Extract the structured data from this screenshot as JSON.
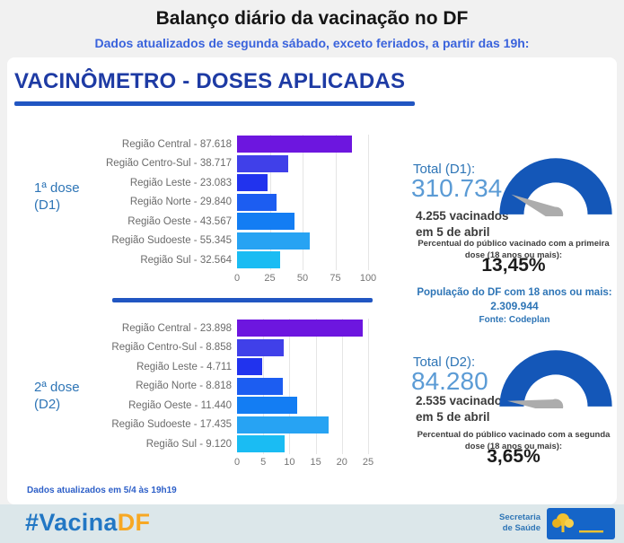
{
  "page": {
    "title": "Balanço diário da vacinação no DF",
    "subtitle": "Dados atualizados de segunda sábado, exceto feriados, a partir das 19h:"
  },
  "card": {
    "title": "VACINÔMETRO - DOSES APLICADAS",
    "updated_note": "Dados atualizados em 5/4 às 19h19"
  },
  "population": {
    "label": "População do DF com 18 anos ou mais:",
    "value": "2.309.944",
    "source": "Fonte: Codeplan"
  },
  "dose1": {
    "side_label_line1": "1ª dose",
    "side_label_line2": "(D1)",
    "total_label": "Total (D1):",
    "total_value": "310.734",
    "daily_line1": "4.255 vacinados",
    "daily_line2": "em 5 de abril",
    "gauge_caption": "Percentual do público vacinado com a primeira dose (18 anos ou mais):",
    "gauge_value_label": "13,45%",
    "gauge_percent": 13.45
  },
  "dose2": {
    "side_label_line1": "2ª dose",
    "side_label_line2": "(D2)",
    "total_label": "Total (D2):",
    "total_value": "84.280",
    "daily_line1": "2.535 vacinados",
    "daily_line2": "em 5 de abril",
    "gauge_caption": "Percentual do público vacinado com a segunda dose (18 anos ou mais):",
    "gauge_value_label": "3,65%",
    "gauge_percent": 3.65
  },
  "chart_data": [
    {
      "type": "bar",
      "orientation": "horizontal",
      "group": "1ª dose (D1)",
      "categories": [
        "Região Central",
        "Região Centro-Sul",
        "Região Leste",
        "Região Norte",
        "Região Oeste",
        "Região Sudoeste",
        "Região Sul"
      ],
      "values": [
        87618,
        38717,
        23083,
        29840,
        43567,
        55345,
        32564
      ],
      "bar_labels": [
        "Região Central - 87.618",
        "Região Centro-Sul - 38.717",
        "Região Leste - 23.083",
        "Região Norte - 29.840",
        "Região Oeste - 43.567",
        "Região Sudoeste - 55.345",
        "Região Sul - 32.564"
      ],
      "x_ticks": [
        0,
        25,
        50,
        75,
        100
      ],
      "xlim": [
        0,
        100
      ],
      "x_unit": "milhares",
      "value_divisor": 1000,
      "grid": true,
      "legend": "none"
    },
    {
      "type": "bar",
      "orientation": "horizontal",
      "group": "2ª dose (D2)",
      "categories": [
        "Região Central",
        "Região Centro-Sul",
        "Região Leste",
        "Região Norte",
        "Região Oeste",
        "Região Sudoeste",
        "Região Sul"
      ],
      "values": [
        23898,
        8858,
        4711,
        8818,
        11440,
        17435,
        9120
      ],
      "bar_labels": [
        "Região Central - 23.898",
        "Região Centro-Sul - 8.858",
        "Região Leste - 4.711",
        "Região Norte - 8.818",
        "Região Oeste - 11.440",
        "Região Sudoeste - 17.435",
        "Região Sul - 9.120"
      ],
      "x_ticks": [
        0,
        5,
        10,
        15,
        20,
        25
      ],
      "xlim": [
        0,
        25
      ],
      "x_unit": "milhares",
      "value_divisor": 1000,
      "grid": true,
      "legend": "none"
    }
  ],
  "footer": {
    "hashtag_prefix": "#Vacina",
    "hashtag_suffix": "DF",
    "org_line1": "Secretaria",
    "org_line2": "de Saúde",
    "gdf_label": "GDF"
  },
  "colors": {
    "bar_palette": [
      "#6D16DF",
      "#4040E9",
      "#2133EE",
      "#1C5DF1",
      "#137DF3",
      "#27A3F3",
      "#1ABCF3"
    ],
    "gauge_blue": "#1457B8",
    "needle_gray": "#ACACAC",
    "accent_blue": "#2E75B6",
    "total_value_blue": "#5B9BD5",
    "card_title_blue": "#1E3BA4",
    "underline_blue": "#2156C2",
    "subtitle_blue": "#3A63DC",
    "note_blue": "#2D5FC8",
    "hashtag_blue": "#2277C4",
    "hashtag_orange": "#F7A823",
    "footer_bg": "#DCE7EA",
    "gdf_logo_blue": "#1565C8"
  }
}
